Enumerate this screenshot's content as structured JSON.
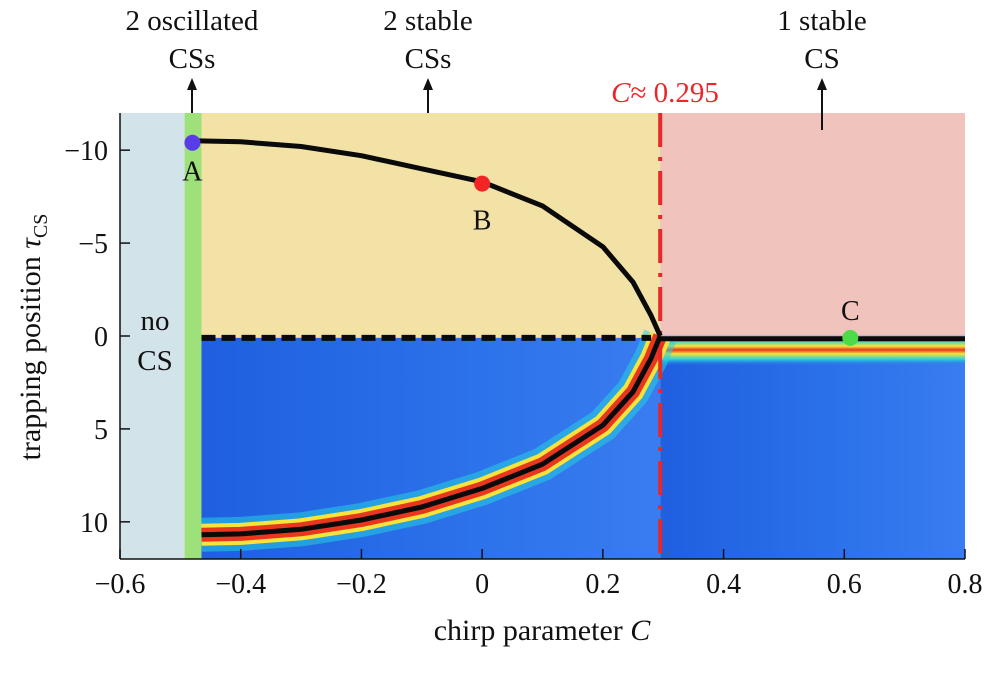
{
  "colors": {
    "no_cs_region": "#d3e3ea",
    "oscillated_region": "#9ee07a",
    "two_stable_region": "#f2e2a6",
    "one_stable_region": "#f0c4bc",
    "lower_field": "#2a6de8",
    "critical_line": "#e8272a",
    "point_A": "#5a3be8",
    "point_B": "#f22424",
    "point_C": "#4ddc47"
  },
  "chart_data": {
    "type": "line",
    "xlabel": "chirp parameter",
    "xlabel_symbol": "C",
    "ylabel": "trapping position",
    "ylabel_symbol": "τ",
    "ylabel_subscript": "CS",
    "xlim": [
      -0.6,
      0.8
    ],
    "ylim": [
      -12,
      12
    ],
    "y_inverted": true,
    "x_ticks": [
      -0.6,
      -0.4,
      -0.2,
      0,
      0.2,
      0.4,
      0.6,
      0.8
    ],
    "x_tick_labels": [
      "−0.6",
      "−0.4",
      "−0.2",
      "0",
      "0.2",
      "0.4",
      "0.6",
      "0.8"
    ],
    "y_ticks": [
      -10,
      -5,
      0,
      5,
      10
    ],
    "y_tick_labels": [
      "−10",
      "−5",
      "0",
      "5",
      "10"
    ],
    "critical_value": 0.295,
    "critical_label_symbol": "C",
    "critical_label_rest": "≈ 0.295",
    "regions": [
      {
        "name": "no CS",
        "x_range": [
          -0.6,
          -0.493
        ],
        "label_lines": [
          "no",
          "CS"
        ]
      },
      {
        "name": "2 oscillated CSs",
        "x_range": [
          -0.493,
          -0.465
        ],
        "label_lines": [
          "2 oscillated",
          "CSs"
        ]
      },
      {
        "name": "2 stable CSs",
        "x_range": [
          -0.465,
          0.295
        ],
        "label_lines": [
          "2 stable",
          "CSs"
        ]
      },
      {
        "name": "1 stable CS",
        "x_range": [
          0.295,
          0.8
        ],
        "label_lines": [
          "1 stable",
          "CS"
        ]
      }
    ],
    "series": [
      {
        "name": "upper stable CS branch",
        "style": "solid",
        "x": [
          -0.47,
          -0.4,
          -0.3,
          -0.2,
          -0.1,
          0.0,
          0.1,
          0.2,
          0.25,
          0.28,
          0.295
        ],
        "y": [
          -10.5,
          -10.45,
          -10.2,
          -9.7,
          -9.0,
          -8.3,
          -7.0,
          -4.8,
          -2.9,
          -1.1,
          0.0
        ]
      },
      {
        "name": "lower stable CS branch",
        "style": "solid",
        "x": [
          -0.465,
          -0.4,
          -0.3,
          -0.2,
          -0.1,
          0.0,
          0.1,
          0.2,
          0.25,
          0.28,
          0.295
        ],
        "y": [
          10.7,
          10.65,
          10.4,
          9.9,
          9.2,
          8.2,
          6.9,
          4.8,
          3.0,
          1.2,
          0.0
        ]
      },
      {
        "name": "unstable branch",
        "style": "dashed",
        "x": [
          -0.465,
          0.28
        ],
        "y": [
          0.1,
          0.1
        ]
      },
      {
        "name": "single stable CS",
        "style": "solid",
        "x": [
          0.295,
          0.8
        ],
        "y": [
          0.15,
          0.15
        ]
      }
    ],
    "points": [
      {
        "label": "A",
        "x": -0.48,
        "y": -10.4
      },
      {
        "label": "B",
        "x": 0.0,
        "y": -8.2
      },
      {
        "label": "C",
        "x": 0.61,
        "y": 0.1
      }
    ]
  }
}
